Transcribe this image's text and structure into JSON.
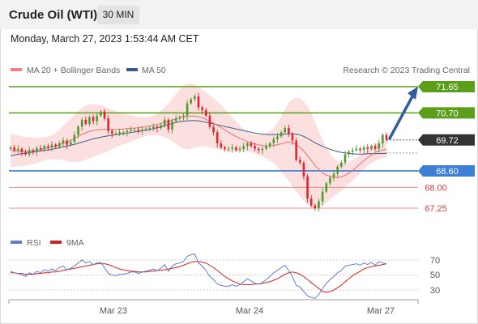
{
  "header": {
    "title": "Crude Oil (WTI)",
    "timeframe": "30 MIN",
    "datetime": "Monday, March 27, 2023 1:53:44 AM CET"
  },
  "colors": {
    "resistance": "#5a9e1a",
    "support": "#3d7fd4",
    "target": "#e88b8b",
    "current": "#333333",
    "bull": "#4f9a2f",
    "bear": "#e0242a",
    "band_fill": "#fbd5d5",
    "ma20": "#e87070",
    "ma50": "#3a5a8c",
    "rsi": "#5b7fd1",
    "rsi_ma": "#d92020",
    "arrow": "#2f5d9e"
  },
  "chart_data": [
    {
      "type": "candlestick",
      "legend": [
        {
          "label": "MA 20 + Bollinger Bands",
          "color": "#f08080"
        },
        {
          "label": "MA 50",
          "color": "#3a5a8c"
        }
      ],
      "legend_position": "top-left",
      "credit": "Research © 2023 Trading Central",
      "x_ticks": [
        "Mar 23",
        "Mar 24",
        "Mar 27"
      ],
      "ylim": [
        66.6,
        72.2
      ],
      "levels": [
        {
          "value": 71.65,
          "label": "71.65",
          "kind": "resistance"
        },
        {
          "value": 70.7,
          "label": "70.70",
          "kind": "resistance"
        },
        {
          "value": 69.72,
          "label": "69.72",
          "kind": "current"
        },
        {
          "value": 68.6,
          "label": "68.60",
          "kind": "support"
        },
        {
          "value": 68.0,
          "label": "68.00",
          "kind": "target"
        },
        {
          "value": 67.25,
          "label": "67.25",
          "kind": "target"
        }
      ],
      "projection": {
        "from": 69.72,
        "to": 71.65
      },
      "close": [
        69.45,
        69.35,
        69.4,
        69.28,
        69.2,
        69.35,
        69.3,
        69.42,
        69.38,
        69.5,
        69.45,
        69.55,
        69.48,
        69.6,
        69.7,
        69.55,
        69.65,
        69.9,
        70.2,
        70.45,
        70.3,
        70.55,
        70.4,
        70.6,
        70.75,
        70.5,
        70.05,
        69.95,
        69.95,
        70.0,
        70.0,
        70.05,
        70.1,
        70.1,
        70.05,
        70.1,
        70.12,
        70.15,
        70.2,
        70.15,
        70.25,
        70.45,
        70.1,
        70.4,
        70.5,
        70.55,
        70.6,
        71.05,
        71.2,
        71.3,
        70.9,
        70.8,
        70.6,
        70.2,
        70.0,
        69.6,
        69.45,
        69.4,
        69.4,
        69.45,
        69.35,
        69.4,
        69.5,
        69.6,
        69.5,
        69.4,
        69.35,
        69.4,
        69.5,
        69.6,
        69.75,
        69.85,
        70.0,
        70.15,
        69.95,
        69.7,
        69.0,
        68.9,
        68.4,
        67.6,
        67.35,
        67.25,
        67.5,
        67.85,
        68.15,
        68.35,
        68.5,
        68.75,
        68.9,
        69.2,
        69.3,
        69.35,
        69.4,
        69.35,
        69.45,
        69.4,
        69.5,
        69.4,
        69.6,
        69.9,
        69.72
      ],
      "ma20": [
        69.35,
        69.33,
        69.32,
        69.31,
        69.31,
        69.32,
        69.33,
        69.35,
        69.37,
        69.4,
        69.43,
        69.46,
        69.5,
        69.55,
        69.6,
        69.65,
        69.7,
        69.78,
        69.85,
        69.92,
        69.98,
        70.03,
        70.06,
        70.08,
        70.1,
        70.1,
        70.1,
        70.1,
        70.1,
        70.11,
        70.12,
        70.13,
        70.14,
        70.15,
        70.16,
        70.18,
        70.2,
        70.22,
        70.25,
        70.28,
        70.32,
        70.36,
        70.4,
        70.44,
        70.48,
        70.52,
        70.55,
        70.57,
        70.58,
        70.58,
        70.56,
        70.52,
        70.46,
        70.4,
        70.33,
        70.25,
        70.17,
        70.08,
        70.0,
        69.92,
        69.85,
        69.78,
        69.72,
        69.66,
        69.61,
        69.57,
        69.54,
        69.52,
        69.5,
        69.5,
        69.52,
        69.55,
        69.58,
        69.62,
        69.64,
        69.62,
        69.55,
        69.45,
        69.32,
        69.15,
        68.98,
        68.8,
        68.65,
        68.53,
        68.45,
        68.4,
        68.37,
        68.36,
        68.38,
        68.44,
        68.52,
        68.62,
        68.73,
        68.85,
        68.97,
        69.08,
        69.18,
        69.26,
        69.32,
        69.36,
        69.38
      ],
      "ma50": [
        69.15,
        69.18,
        69.2,
        69.22,
        69.24,
        69.26,
        69.28,
        69.3,
        69.32,
        69.34,
        69.36,
        69.38,
        69.41,
        69.44,
        69.47,
        69.5,
        69.53,
        69.56,
        69.6,
        69.64,
        69.68,
        69.72,
        69.76,
        69.79,
        69.82,
        69.85,
        69.87,
        69.89,
        69.91,
        69.93,
        69.95,
        69.97,
        69.99,
        70.01,
        70.03,
        70.05,
        70.07,
        70.1,
        70.13,
        70.16,
        70.2,
        70.24,
        70.28,
        70.32,
        70.35,
        70.38,
        70.4,
        70.41,
        70.42,
        70.42,
        70.41,
        70.39,
        70.36,
        70.33,
        70.3,
        70.27,
        70.24,
        70.21,
        70.18,
        70.15,
        70.12,
        70.09,
        70.06,
        70.03,
        70.0,
        69.97,
        69.95,
        69.93,
        69.92,
        69.91,
        69.91,
        69.91,
        69.92,
        69.93,
        69.94,
        69.94,
        69.93,
        69.9,
        69.85,
        69.78,
        69.7,
        69.62,
        69.55,
        69.49,
        69.43,
        69.38,
        69.34,
        69.3,
        69.27,
        69.25,
        69.23,
        69.22,
        69.21,
        69.21,
        69.21,
        69.22,
        69.22,
        69.22,
        69.23,
        69.23,
        69.24
      ],
      "band_width": [
        0.6,
        0.58,
        0.56,
        0.54,
        0.52,
        0.5,
        0.48,
        0.46,
        0.44,
        0.42,
        0.42,
        0.44,
        0.48,
        0.55,
        0.62,
        0.7,
        0.78,
        0.86,
        0.92,
        0.96,
        0.98,
        0.98,
        0.96,
        0.92,
        0.88,
        0.84,
        0.78,
        0.72,
        0.66,
        0.6,
        0.56,
        0.52,
        0.48,
        0.44,
        0.4,
        0.36,
        0.34,
        0.34,
        0.36,
        0.4,
        0.46,
        0.54,
        0.64,
        0.76,
        0.9,
        1.04,
        1.14,
        1.18,
        1.18,
        1.14,
        1.08,
        1.02,
        0.98,
        0.94,
        0.9,
        0.86,
        0.82,
        0.76,
        0.7,
        0.62,
        0.54,
        0.46,
        0.4,
        0.36,
        0.34,
        0.34,
        0.36,
        0.4,
        0.46,
        0.54,
        0.64,
        0.8,
        1.0,
        1.22,
        1.42,
        1.58,
        1.7,
        1.78,
        1.8,
        1.78,
        1.7,
        1.56,
        1.38,
        1.18,
        1.0,
        0.84,
        0.7,
        0.58,
        0.5,
        0.44,
        0.4,
        0.38,
        0.36,
        0.34,
        0.32,
        0.3,
        0.3,
        0.3,
        0.3,
        0.3,
        0.3
      ]
    },
    {
      "type": "line",
      "legend": [
        {
          "label": "RSI",
          "color": "#5b7fd1"
        },
        {
          "label": "9MA",
          "color": "#d92020"
        }
      ],
      "y_ticks": [
        "70",
        "50",
        "30"
      ],
      "ylim": [
        15,
        85
      ],
      "rsi": [
        55,
        53,
        52,
        50,
        48,
        53,
        51,
        55,
        53,
        57,
        55,
        58,
        56,
        60,
        62,
        57,
        59,
        62,
        66,
        70,
        66,
        68,
        64,
        66,
        67,
        60,
        52,
        50,
        49,
        51,
        51,
        52,
        54,
        54,
        52,
        54,
        55,
        56,
        58,
        56,
        59,
        64,
        55,
        62,
        65,
        66,
        68,
        75,
        77,
        78,
        66,
        62,
        56,
        48,
        44,
        38,
        36,
        35,
        35,
        37,
        35,
        37,
        41,
        45,
        42,
        39,
        38,
        40,
        44,
        48,
        53,
        56,
        60,
        63,
        56,
        48,
        36,
        34,
        28,
        22,
        20,
        19,
        24,
        32,
        39,
        44,
        48,
        53,
        56,
        62,
        63,
        64,
        65,
        63,
        66,
        64,
        67,
        63,
        68,
        66,
        65
      ],
      "rsi_ma": [
        53,
        53,
        52,
        52,
        51,
        51,
        51,
        52,
        52,
        53,
        53,
        54,
        54,
        55,
        56,
        57,
        58,
        59,
        60,
        61,
        62,
        63,
        64,
        65,
        65,
        65,
        64,
        62,
        60,
        58,
        57,
        56,
        55,
        55,
        54,
        54,
        54,
        55,
        55,
        56,
        56,
        57,
        58,
        59,
        60,
        61,
        63,
        65,
        67,
        68,
        68,
        67,
        66,
        63,
        60,
        56,
        52,
        48,
        45,
        42,
        40,
        38,
        37,
        37,
        37,
        38,
        38,
        39,
        40,
        41,
        43,
        45,
        48,
        51,
        53,
        54,
        53,
        51,
        48,
        44,
        40,
        36,
        32,
        28,
        27,
        28,
        30,
        33,
        36,
        41,
        45,
        49,
        52,
        55,
        58,
        60,
        61,
        62,
        63,
        64,
        65
      ]
    }
  ]
}
